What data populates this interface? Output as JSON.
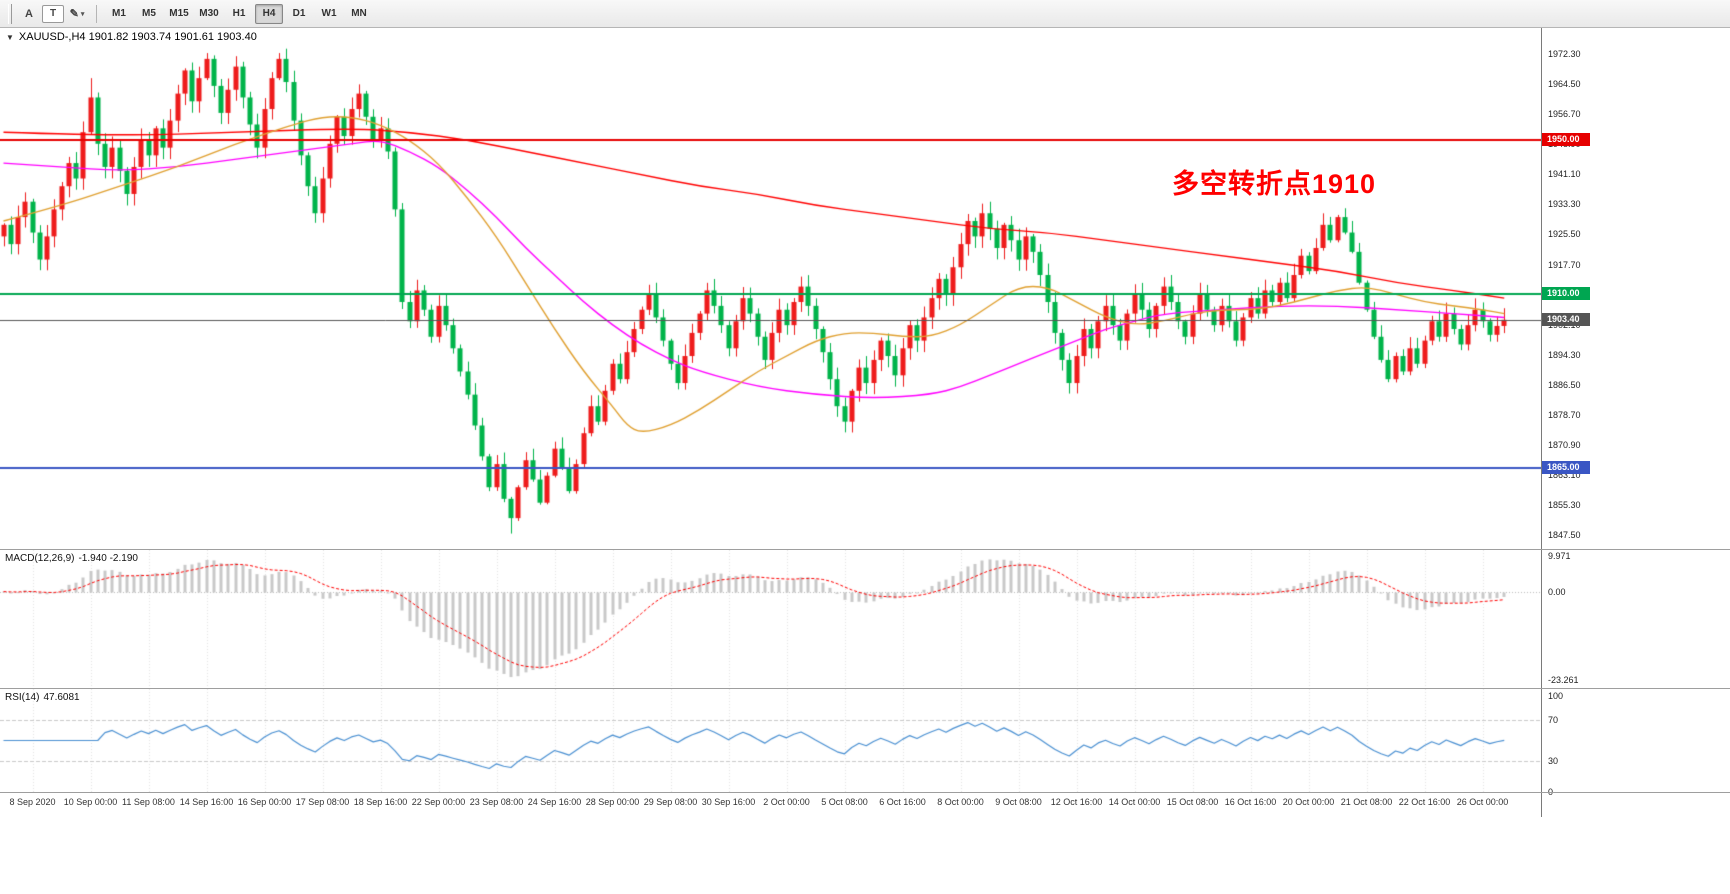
{
  "toolbar": {
    "tools": [
      {
        "id": "annotation",
        "label": "A"
      },
      {
        "id": "text",
        "label": "T"
      },
      {
        "id": "draw",
        "label": "✎",
        "caret": "▾"
      }
    ],
    "timeframes": [
      "M1",
      "M5",
      "M15",
      "M30",
      "H1",
      "H4",
      "D1",
      "W1",
      "MN"
    ],
    "active_timeframe": "H4"
  },
  "chart": {
    "collapse_icon": "▼",
    "symbol_info": "XAUUSD-,H4  1901.82 1903.74 1901.61 1903.40"
  },
  "chart_data": {
    "type": "candlestick",
    "title": "XAUUSD-,H4",
    "ohlc_display": {
      "open": "1901.82",
      "high": "1903.74",
      "low": "1901.61",
      "close": "1903.40"
    },
    "price_axis_range": [
      1844,
      1979
    ],
    "up_color": "#ee1c1c",
    "down_color": "#00b44a",
    "x_tick_labels": [
      "8 Sep 2020",
      "10 Sep 00:00",
      "11 Sep 08:00",
      "14 Sep 16:00",
      "16 Sep 00:00",
      "17 Sep 08:00",
      "18 Sep 16:00",
      "22 Sep 00:00",
      "23 Sep 08:00",
      "24 Sep 16:00",
      "28 Sep 00:00",
      "29 Sep 08:00",
      "30 Sep 16:00",
      "2 Oct 00:00",
      "5 Oct 08:00",
      "6 Oct 16:00",
      "8 Oct 00:00",
      "9 Oct 08:00",
      "12 Oct 16:00",
      "14 Oct 00:00",
      "15 Oct 08:00",
      "16 Oct 16:00",
      "20 Oct 00:00",
      "21 Oct 08:00",
      "22 Oct 16:00",
      "26 Oct 00:00"
    ],
    "y_tick_labels": [
      "1972.30",
      "1964.50",
      "1956.70",
      "1948.90",
      "1941.10",
      "1933.30",
      "1925.50",
      "1917.70",
      "1909.90",
      "1902.10",
      "1894.30",
      "1886.50",
      "1878.70",
      "1870.90",
      "1863.10",
      "1855.30",
      "1847.50"
    ],
    "closes": [
      1928,
      1923,
      1930,
      1934,
      1926,
      1919,
      1925,
      1932,
      1938,
      1944,
      1940,
      1952,
      1961,
      1949,
      1943,
      1948,
      1942,
      1936,
      1943,
      1950,
      1946,
      1953,
      1948,
      1955,
      1962,
      1968,
      1960,
      1966,
      1971,
      1964,
      1957,
      1963,
      1969,
      1961,
      1954,
      1948,
      1958,
      1966,
      1971,
      1965,
      1955,
      1946,
      1938,
      1931,
      1940,
      1949,
      1956,
      1951,
      1958,
      1962,
      1956,
      1950,
      1953,
      1947,
      1932,
      1908,
      1903,
      1911,
      1906,
      1899,
      1907,
      1902,
      1896,
      1890,
      1884,
      1876,
      1868,
      1860,
      1866,
      1857,
      1852,
      1860,
      1867,
      1862,
      1856,
      1863,
      1870,
      1865,
      1859,
      1866,
      1874,
      1881,
      1877,
      1885,
      1892,
      1888,
      1895,
      1901,
      1906,
      1910,
      1904,
      1898,
      1892,
      1887,
      1894,
      1900,
      1905,
      1911,
      1907,
      1902,
      1896,
      1903,
      1909,
      1905,
      1899,
      1893,
      1900,
      1906,
      1902,
      1908,
      1912,
      1907,
      1901,
      1895,
      1888,
      1881,
      1877,
      1885,
      1891,
      1887,
      1893,
      1898,
      1894,
      1889,
      1896,
      1902,
      1898,
      1904,
      1909,
      1914,
      1910,
      1917,
      1923,
      1929,
      1925,
      1931,
      1927,
      1922,
      1928,
      1924,
      1919,
      1925,
      1921,
      1915,
      1908,
      1900,
      1893,
      1887,
      1894,
      1901,
      1896,
      1903,
      1907,
      1902,
      1898,
      1905,
      1910,
      1906,
      1901,
      1907,
      1912,
      1908,
      1903,
      1899,
      1905,
      1910,
      1906,
      1902,
      1907,
      1903,
      1898,
      1904,
      1909,
      1905,
      1911,
      1908,
      1913,
      1909,
      1915,
      1920,
      1916,
      1922,
      1928,
      1924,
      1930,
      1926,
      1921,
      1913,
      1906,
      1899,
      1893,
      1888,
      1894,
      1890,
      1896,
      1892,
      1898,
      1903,
      1899,
      1905,
      1901,
      1897,
      1902,
      1906,
      1903,
      1899.5,
      1901.8,
      1903.4
    ],
    "wick_overrides": {
      "12": [
        5,
        0.5
      ],
      "28": [
        1.5,
        0.5
      ],
      "38": [
        1.5,
        0.5
      ],
      "70": [
        0.5,
        4
      ]
    },
    "ma_lines": [
      {
        "name": "ma-slow",
        "color": "#ff0000",
        "points": [
          [
            0,
            1952
          ],
          [
            16,
            1951
          ],
          [
            32,
            1952
          ],
          [
            48,
            1953
          ],
          [
            56,
            1952
          ],
          [
            64,
            1950
          ],
          [
            72,
            1947
          ],
          [
            80,
            1944
          ],
          [
            88,
            1941
          ],
          [
            96,
            1938
          ],
          [
            104,
            1936
          ],
          [
            112,
            1933
          ],
          [
            120,
            1931
          ],
          [
            128,
            1929
          ],
          [
            136,
            1927
          ],
          [
            144,
            1926
          ],
          [
            152,
            1924
          ],
          [
            160,
            1922
          ],
          [
            168,
            1920
          ],
          [
            176,
            1918
          ],
          [
            184,
            1916
          ],
          [
            192,
            1913
          ],
          [
            200,
            1911
          ],
          [
            207,
            1909
          ]
        ]
      },
      {
        "name": "ma-medium",
        "color": "#ff00ff",
        "points": [
          [
            0,
            1944
          ],
          [
            8,
            1943
          ],
          [
            16,
            1942
          ],
          [
            24,
            1943
          ],
          [
            32,
            1945
          ],
          [
            40,
            1947
          ],
          [
            48,
            1949
          ],
          [
            52,
            1950
          ],
          [
            56,
            1947
          ],
          [
            60,
            1943
          ],
          [
            64,
            1937
          ],
          [
            68,
            1930
          ],
          [
            72,
            1922
          ],
          [
            76,
            1915
          ],
          [
            80,
            1908
          ],
          [
            84,
            1902
          ],
          [
            88,
            1897
          ],
          [
            92,
            1893
          ],
          [
            96,
            1890
          ],
          [
            104,
            1886
          ],
          [
            112,
            1884
          ],
          [
            120,
            1883
          ],
          [
            128,
            1884
          ],
          [
            132,
            1886
          ],
          [
            136,
            1889
          ],
          [
            140,
            1892
          ],
          [
            144,
            1895
          ],
          [
            148,
            1898
          ],
          [
            152,
            1901
          ],
          [
            156,
            1903
          ],
          [
            160,
            1905
          ],
          [
            168,
            1906
          ],
          [
            176,
            1907
          ],
          [
            184,
            1907
          ],
          [
            192,
            1906
          ],
          [
            200,
            1905
          ],
          [
            207,
            1904
          ]
        ]
      },
      {
        "name": "ma-fast",
        "color": "#e0a030",
        "points": [
          [
            0,
            1929
          ],
          [
            8,
            1933
          ],
          [
            16,
            1938
          ],
          [
            24,
            1943
          ],
          [
            32,
            1949
          ],
          [
            40,
            1954
          ],
          [
            44,
            1956
          ],
          [
            48,
            1956
          ],
          [
            52,
            1954
          ],
          [
            56,
            1950
          ],
          [
            60,
            1944
          ],
          [
            64,
            1935
          ],
          [
            68,
            1925
          ],
          [
            72,
            1913
          ],
          [
            76,
            1901
          ],
          [
            80,
            1890
          ],
          [
            84,
            1881
          ],
          [
            86,
            1876
          ],
          [
            88,
            1874
          ],
          [
            92,
            1876
          ],
          [
            96,
            1880
          ],
          [
            100,
            1885
          ],
          [
            104,
            1890
          ],
          [
            108,
            1894
          ],
          [
            112,
            1898
          ],
          [
            116,
            1900
          ],
          [
            120,
            1900
          ],
          [
            124,
            1899
          ],
          [
            128,
            1899
          ],
          [
            132,
            1902
          ],
          [
            136,
            1907
          ],
          [
            140,
            1912
          ],
          [
            144,
            1912
          ],
          [
            148,
            1908
          ],
          [
            152,
            1904
          ],
          [
            156,
            1902
          ],
          [
            160,
            1903
          ],
          [
            164,
            1905
          ],
          [
            168,
            1906
          ],
          [
            172,
            1906
          ],
          [
            176,
            1907
          ],
          [
            180,
            1909
          ],
          [
            184,
            1911
          ],
          [
            188,
            1912
          ],
          [
            192,
            1910
          ],
          [
            196,
            1908
          ],
          [
            200,
            1907
          ],
          [
            204,
            1906
          ],
          [
            207,
            1905
          ]
        ]
      }
    ],
    "levels": [
      {
        "price": 1950.0,
        "label": "1950.00",
        "color": "#e60000",
        "width": 2
      },
      {
        "price": 1910.0,
        "label": "1910.00",
        "color": "#00a651",
        "width": 2
      },
      {
        "price": 1903.4,
        "label": "1903.40",
        "color": "#555555",
        "width": 1,
        "current": true
      },
      {
        "price": 1865.0,
        "label": "1865.00",
        "color": "#3a56c4",
        "width": 2
      }
    ],
    "annotations": [
      {
        "text": "多空转折点1910",
        "color": "#ff0000"
      }
    ]
  },
  "macd": {
    "label": "MACD(12,26,9)",
    "values": "-1.940 -2.190",
    "params": {
      "fast": 12,
      "slow": 26,
      "signal": 9
    },
    "range": [
      -25.5,
      11
    ],
    "axis": [
      {
        "label": "9.971",
        "value": 9.971
      },
      {
        "label": "0.00",
        "value": 0
      },
      {
        "label": "-23.261",
        "value": -23.261
      }
    ],
    "histogram_color": "#c9c9c9",
    "signal_color": "#ff0000"
  },
  "rsi": {
    "label": "RSI(14)",
    "value": "47.6081",
    "period": 14,
    "line_color": "#4a90d2",
    "guide_levels": [
      70,
      30
    ],
    "axis": [
      {
        "label": "100",
        "value": 100
      },
      {
        "label": "70",
        "value": 70
      },
      {
        "label": "30",
        "value": 30
      },
      {
        "label": "0",
        "value": 0
      }
    ]
  }
}
